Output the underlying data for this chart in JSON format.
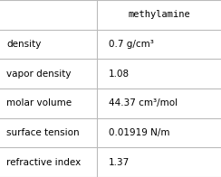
{
  "title": "methylamine",
  "rows": [
    [
      "density",
      "0.7 g/cm³"
    ],
    [
      "vapor density",
      "1.08"
    ],
    [
      "molar volume",
      "44.37 cm³/mol"
    ],
    [
      "surface tension",
      "0.01919 N/m"
    ],
    [
      "refractive index",
      "1.37"
    ]
  ],
  "bg_color": "#ffffff",
  "border_color": "#bbbbbb",
  "text_color": "#000000",
  "font_size": 7.5,
  "col_split": 0.44,
  "figsize": [
    2.44,
    1.96
  ],
  "dpi": 100
}
